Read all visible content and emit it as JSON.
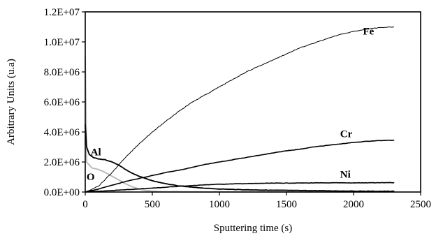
{
  "chart_data": {
    "type": "line",
    "xlabel": "Sputtering time (s)",
    "ylabel": "Arbitrary Units (u.a)",
    "xlim": [
      0,
      2500
    ],
    "ylim": [
      0,
      12000000
    ],
    "x_ticks": [
      0,
      500,
      1000,
      1500,
      2000,
      2500
    ],
    "x_tick_labels": [
      "0",
      "500",
      "1000",
      "1500",
      "2000",
      "2500"
    ],
    "y_ticks": [
      0,
      2000000,
      4000000,
      6000000,
      8000000,
      10000000,
      12000000
    ],
    "y_tick_labels": [
      "0.0E+00",
      "2.0E+06",
      "4.0E+06",
      "6.0E+06",
      "8.0E+06",
      "1.0E+07",
      "1.2E+07"
    ],
    "grid": false,
    "legend": "inline labels",
    "series": [
      {
        "name": "Fe",
        "color": "#000000",
        "x": [
          0,
          100,
          200,
          300,
          400,
          500,
          600,
          700,
          800,
          900,
          1000,
          1100,
          1200,
          1300,
          1400,
          1500,
          1600,
          1700,
          1800,
          1900,
          2000,
          2100,
          2200,
          2300
        ],
        "y": [
          0,
          400000,
          1300000,
          2300000,
          3200000,
          4000000,
          4700000,
          5400000,
          6000000,
          6500000,
          7000000,
          7500000,
          8000000,
          8400000,
          8800000,
          9200000,
          9600000,
          9900000,
          10200000,
          10500000,
          10700000,
          10850000,
          10950000,
          11000000
        ]
      },
      {
        "name": "Cr",
        "color": "#000000",
        "x": [
          0,
          100,
          200,
          300,
          400,
          500,
          600,
          700,
          800,
          900,
          1000,
          1100,
          1200,
          1300,
          1400,
          1500,
          1600,
          1700,
          1800,
          1900,
          2000,
          2100,
          2200,
          2300
        ],
        "y": [
          0,
          200000,
          450000,
          700000,
          900000,
          1100000,
          1300000,
          1450000,
          1650000,
          1850000,
          2000000,
          2150000,
          2300000,
          2450000,
          2600000,
          2750000,
          2850000,
          3000000,
          3100000,
          3200000,
          3300000,
          3380000,
          3430000,
          3450000
        ]
      },
      {
        "name": "Ni",
        "color": "#000000",
        "x": [
          0,
          100,
          200,
          300,
          400,
          500,
          600,
          700,
          800,
          900,
          1000,
          1200,
          1400,
          1600,
          1800,
          2000,
          2200,
          2300
        ],
        "y": [
          0,
          50000,
          100000,
          150000,
          200000,
          260000,
          320000,
          380000,
          430000,
          480000,
          520000,
          560000,
          590000,
          600000,
          610000,
          610000,
          620000,
          620000
        ]
      },
      {
        "name": "Al",
        "color": "#000000",
        "x": [
          0,
          10,
          30,
          60,
          100,
          150,
          200,
          250,
          300,
          350,
          400,
          450,
          500,
          600,
          700,
          800,
          900,
          1000,
          1200,
          1400,
          1600,
          1800,
          2000,
          2200,
          2300
        ],
        "y": [
          4500000,
          3000000,
          2500000,
          2300000,
          2200000,
          2150000,
          2000000,
          1800000,
          1500000,
          1250000,
          1050000,
          900000,
          750000,
          550000,
          400000,
          320000,
          250000,
          200000,
          150000,
          120000,
          100000,
          80000,
          60000,
          50000,
          50000
        ]
      },
      {
        "name": "O",
        "color": "#bbbbbb",
        "x": [
          0,
          10,
          50,
          100,
          150,
          200,
          250,
          300,
          350,
          400,
          450,
          500,
          550,
          600,
          700,
          800,
          900,
          1000,
          1200,
          1400,
          1600,
          1800,
          2000,
          2300
        ],
        "y": [
          9000000,
          2000000,
          1600000,
          1500000,
          1300000,
          1050000,
          800000,
          550000,
          350000,
          200000,
          100000,
          60000,
          30000,
          20000,
          15000,
          10000,
          10000,
          10000,
          10000,
          10000,
          10000,
          10000,
          10000,
          10000
        ]
      }
    ]
  }
}
